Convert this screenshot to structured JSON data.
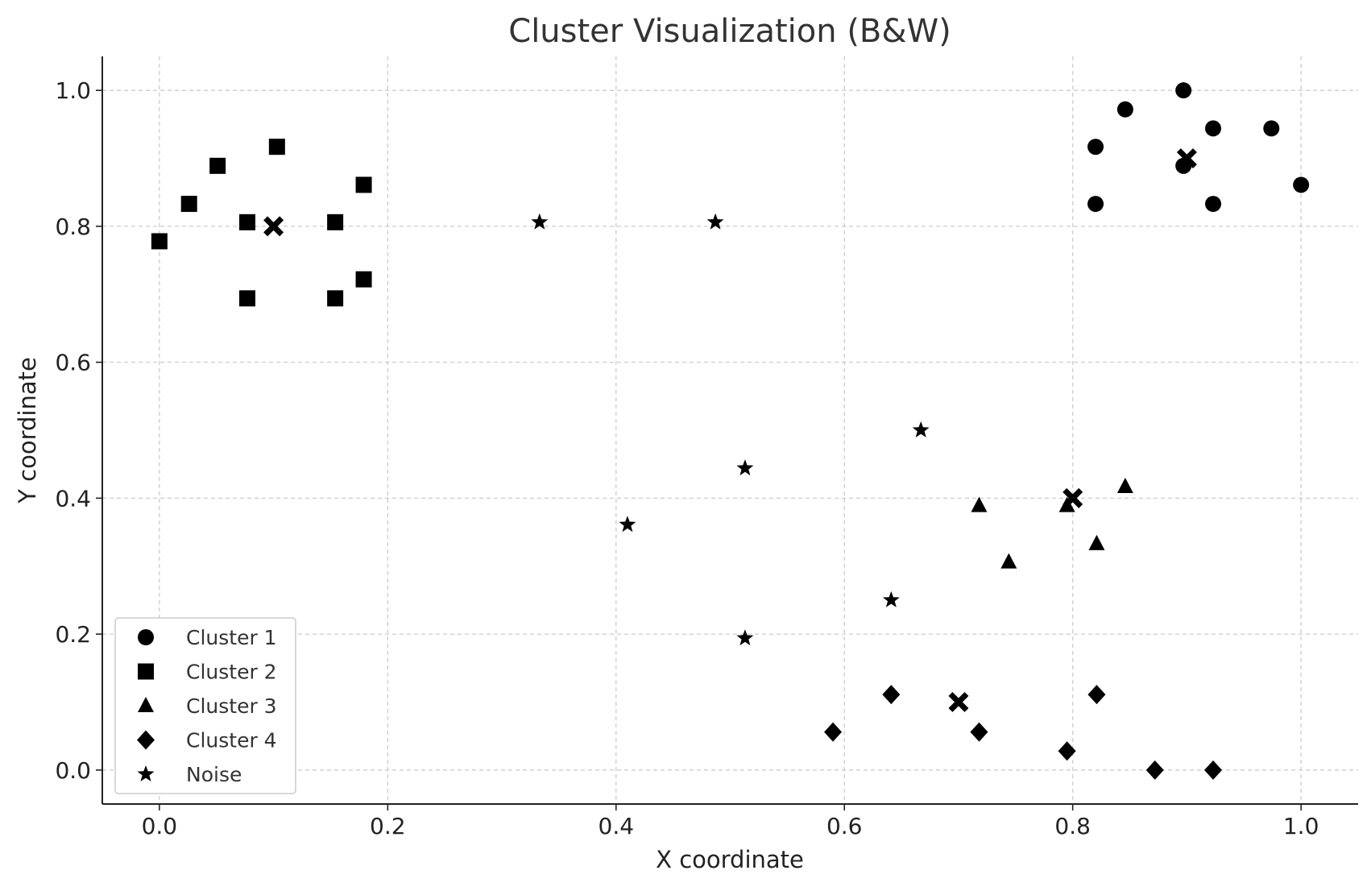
{
  "chart_data": {
    "type": "scatter",
    "title": "Cluster Visualization (B&W)",
    "xlabel": "X coordinate",
    "ylabel": "Y coordinate",
    "xlim": [
      -0.05,
      1.05
    ],
    "ylim": [
      -0.05,
      1.05
    ],
    "xticks": [
      0.0,
      0.2,
      0.4,
      0.6,
      0.8,
      1.0
    ],
    "yticks": [
      0.0,
      0.2,
      0.4,
      0.6,
      0.8,
      1.0
    ],
    "xtick_labels": [
      "0.0",
      "0.2",
      "0.4",
      "0.6",
      "0.8",
      "1.0"
    ],
    "ytick_labels": [
      "0.0",
      "0.2",
      "0.4",
      "0.6",
      "0.8",
      "1.0"
    ],
    "grid": true,
    "legend_position": "lower-left",
    "color": "#000000",
    "series": [
      {
        "name": "Cluster 1",
        "marker": "circle",
        "points": [
          [
            0.82,
            0.917
          ],
          [
            0.846,
            0.972
          ],
          [
            0.897,
            1.0
          ],
          [
            0.923,
            0.944
          ],
          [
            0.974,
            0.944
          ],
          [
            0.82,
            0.833
          ],
          [
            0.897,
            0.889
          ],
          [
            0.923,
            0.833
          ],
          [
            1.0,
            0.861
          ]
        ]
      },
      {
        "name": "Cluster 2",
        "marker": "square",
        "points": [
          [
            0.0,
            0.778
          ],
          [
            0.026,
            0.833
          ],
          [
            0.051,
            0.889
          ],
          [
            0.103,
            0.917
          ],
          [
            0.077,
            0.806
          ],
          [
            0.154,
            0.806
          ],
          [
            0.179,
            0.861
          ],
          [
            0.077,
            0.694
          ],
          [
            0.154,
            0.694
          ],
          [
            0.179,
            0.722
          ]
        ]
      },
      {
        "name": "Cluster 3",
        "marker": "triangle",
        "points": [
          [
            0.718,
            0.389
          ],
          [
            0.795,
            0.389
          ],
          [
            0.846,
            0.417
          ],
          [
            0.744,
            0.306
          ],
          [
            0.821,
            0.333
          ]
        ]
      },
      {
        "name": "Cluster 4",
        "marker": "diamond",
        "points": [
          [
            0.59,
            0.056
          ],
          [
            0.641,
            0.111
          ],
          [
            0.718,
            0.056
          ],
          [
            0.795,
            0.028
          ],
          [
            0.821,
            0.111
          ],
          [
            0.872,
            0.0
          ],
          [
            0.923,
            0.0
          ]
        ]
      },
      {
        "name": "Noise",
        "marker": "star",
        "points": [
          [
            0.333,
            0.806
          ],
          [
            0.487,
            0.806
          ],
          [
            0.513,
            0.444
          ],
          [
            0.667,
            0.5
          ],
          [
            0.41,
            0.361
          ],
          [
            0.641,
            0.25
          ],
          [
            0.513,
            0.194
          ]
        ]
      }
    ],
    "centroids": {
      "marker": "x",
      "points": [
        [
          0.9,
          0.9
        ],
        [
          0.1,
          0.8
        ],
        [
          0.8,
          0.4
        ],
        [
          0.7,
          0.1
        ]
      ]
    }
  }
}
